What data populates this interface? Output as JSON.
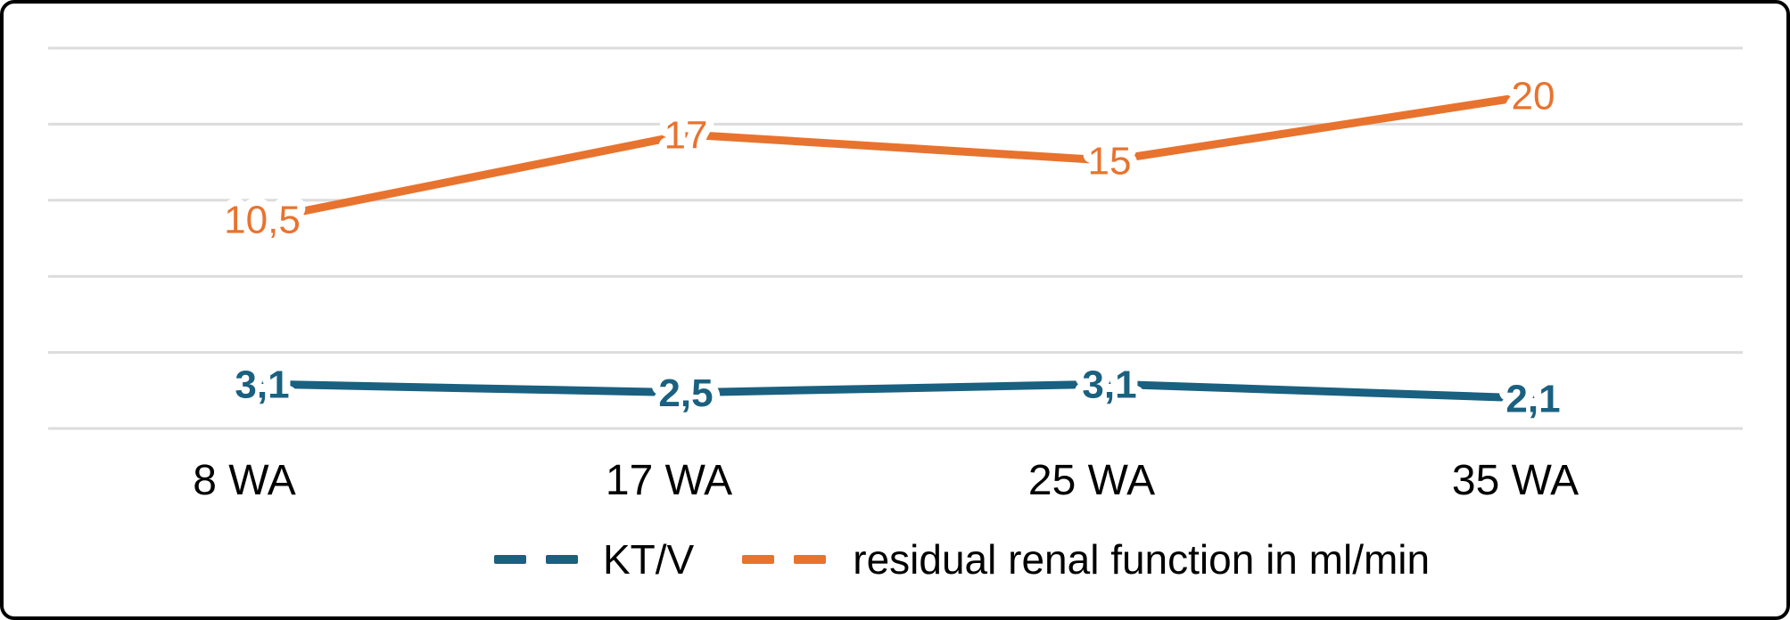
{
  "chart_data": {
    "type": "line",
    "title": "",
    "xlabel": "",
    "ylabel": "",
    "categories": [
      "8 WA",
      "17 WA",
      "25 WA",
      "35 WA"
    ],
    "series": [
      {
        "name": "KT/V",
        "values": [
          3.1,
          2.5,
          3.1,
          2.1
        ],
        "data_labels": [
          "3,1",
          "2,5",
          "3,1",
          "2,1"
        ],
        "color": "#1A6080"
      },
      {
        "name": "residual renal function in ml/min",
        "values": [
          10.5,
          17,
          15,
          20
        ],
        "data_labels": [
          "10,5",
          "17",
          "15",
          "20"
        ],
        "color": "#E8732E"
      }
    ],
    "legend_position": "bottom",
    "grid": true,
    "gridline_count": 6,
    "y_axis_tick_labels_visible": false,
    "gridline_color": "#DCDCDC",
    "background_color": "#FFFFFF",
    "frame_border_color": "#000000"
  }
}
